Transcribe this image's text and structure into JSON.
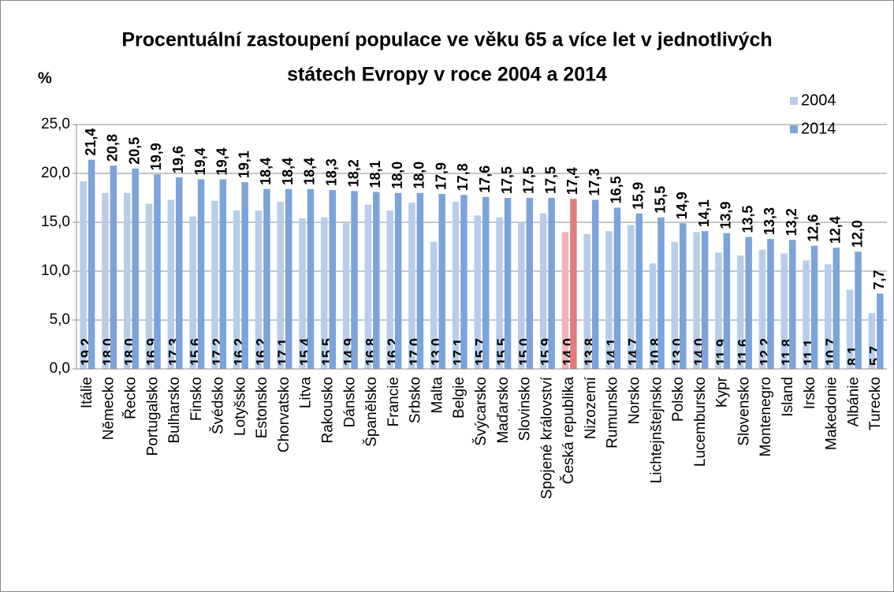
{
  "chart_data": {
    "type": "bar",
    "title": [
      "Procentuální zastoupení populace ve věku 65 a více let v jednotlivých",
      "státech Evropy v roce 2004 a 2014"
    ],
    "y_label": "%",
    "categories": [
      "Itálie",
      "Německo",
      "Řecko",
      "Portugalsko",
      "Bulharsko",
      "Finsko",
      "Švédsko",
      "Lotyšsko",
      "Estonsko",
      "Chorvatsko",
      "Litva",
      "Rakousko",
      "Dánsko",
      "Španělsko",
      "Francie",
      "Srbsko",
      "Malta",
      "Belgie",
      "Švýcarsko",
      "Maďarsko",
      "Slovinsko",
      "Spojené království",
      "Česká republika",
      "Nizozemí",
      "Rumunsko",
      "Norsko",
      "Lichtejnštejnsko",
      "Polsko",
      "Lucembursko",
      "Kypr",
      "Slovensko",
      "Montenegro",
      "Island",
      "Irsko",
      "Makedonie",
      "Albánie",
      "Turecko"
    ],
    "series": [
      {
        "name": "2004",
        "color": "#b9cdea",
        "highlight_color": "#f0b4b4",
        "values": [
          19.2,
          18.0,
          18.0,
          16.9,
          17.3,
          15.6,
          17.2,
          16.2,
          16.2,
          17.1,
          15.4,
          15.5,
          14.9,
          16.8,
          16.2,
          17.0,
          13.0,
          17.1,
          15.7,
          15.5,
          15.0,
          15.9,
          14.0,
          13.8,
          14.1,
          14.7,
          10.8,
          13.0,
          14.0,
          11.9,
          11.6,
          12.2,
          11.8,
          11.1,
          10.7,
          8.1,
          5.7
        ],
        "value_labels": [
          "19,2",
          "18,0",
          "18,0",
          "16,9",
          "17,3",
          "15,6",
          "17,2",
          "16,2",
          "16,2",
          "17,1",
          "15,4",
          "15,5",
          "14,9",
          "16,8",
          "16,2",
          "17,0",
          "13,0",
          "17,1",
          "15,7",
          "15,5",
          "15,0",
          "15,9",
          "14,0",
          "13,8",
          "14,1",
          "14,7",
          "10,8",
          "13,0",
          "14,0",
          "11,9",
          "11,6",
          "12,2",
          "11,8",
          "11,1",
          "10,7",
          "8,1",
          "5,7"
        ]
      },
      {
        "name": "2014",
        "color": "#7ca3dc",
        "highlight_color": "#e07c7c",
        "values": [
          21.4,
          20.8,
          20.5,
          19.9,
          19.6,
          19.4,
          19.4,
          19.1,
          18.4,
          18.4,
          18.4,
          18.3,
          18.2,
          18.1,
          18.0,
          18.0,
          17.9,
          17.8,
          17.6,
          17.5,
          17.5,
          17.5,
          17.4,
          17.3,
          16.5,
          15.9,
          15.5,
          14.9,
          14.1,
          13.9,
          13.5,
          13.3,
          13.2,
          12.6,
          12.4,
          12.0,
          7.7
        ],
        "value_labels": [
          "21,4",
          "20,8",
          "20,5",
          "19,9",
          "19,6",
          "19,4",
          "19,4",
          "19,1",
          "18,4",
          "18,4",
          "18,4",
          "18,3",
          "18,2",
          "18,1",
          "18,0",
          "18,0",
          "17,9",
          "17,8",
          "17,6",
          "17,5",
          "17,5",
          "17,5",
          "17,4",
          "17,3",
          "16,5",
          "15,9",
          "15,5",
          "14,9",
          "14,1",
          "13,9",
          "13,5",
          "13,3",
          "13,2",
          "12,6",
          "12,4",
          "12,0",
          "7,7"
        ]
      }
    ],
    "highlight_category": "Česká republika",
    "ylim": [
      0,
      25
    ],
    "yticks": [
      {
        "value": 0,
        "label": "0,0"
      },
      {
        "value": 5,
        "label": "5,0"
      },
      {
        "value": 10,
        "label": "10,0"
      },
      {
        "value": 15,
        "label": "15,0"
      },
      {
        "value": 20,
        "label": "20,0"
      },
      {
        "value": 25,
        "label": "25,0"
      }
    ],
    "grid": true,
    "legend": "top-right"
  }
}
